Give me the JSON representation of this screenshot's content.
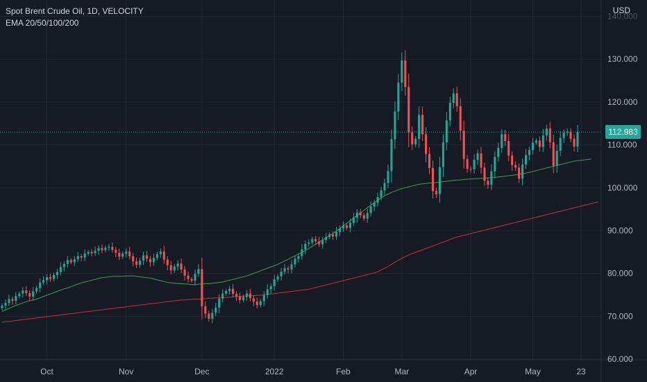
{
  "chart_data": {
    "type": "candlestick",
    "title": "Spot Brent Crude Oil, 1D, VELOCITY",
    "subtitle": "EMA 20/50/100/200",
    "currency": "USD",
    "last_price": "112.983",
    "last_value": 112.983,
    "ylim": [
      60,
      140
    ],
    "y_ticks": [
      "60.000",
      "70.000",
      "80.000",
      "90.000",
      "100.000",
      "110.000",
      "120.000",
      "130.000",
      "140.000"
    ],
    "y_tick_values": [
      60,
      70,
      80,
      90,
      100,
      110,
      120,
      130,
      140
    ],
    "x_ticks": [
      {
        "label": "Oct",
        "index": 13
      },
      {
        "label": "Nov",
        "index": 36
      },
      {
        "label": "Dec",
        "index": 58
      },
      {
        "label": "2022",
        "index": 79
      },
      {
        "label": "Feb",
        "index": 99
      },
      {
        "label": "Mar",
        "index": 116
      },
      {
        "label": "Apr",
        "index": 136
      },
      {
        "label": "May",
        "index": 154
      },
      {
        "label": "23",
        "index": 168
      }
    ],
    "closes": [
      72.5,
      73.1,
      74.0,
      73.6,
      74.7,
      75.3,
      76.0,
      75.4,
      74.6,
      75.8,
      76.6,
      77.9,
      78.4,
      79.1,
      78.7,
      79.6,
      80.3,
      81.5,
      82.2,
      83.1,
      82.6,
      83.3,
      84.0,
      83.7,
      84.6,
      85.0,
      84.7,
      85.3,
      85.9,
      85.4,
      86.0,
      86.2,
      85.5,
      84.8,
      83.9,
      84.6,
      85.1,
      84.0,
      82.8,
      82.0,
      83.0,
      84.2,
      83.4,
      82.6,
      83.6,
      84.5,
      85.1,
      83.2,
      81.9,
      80.7,
      81.6,
      82.3,
      80.9,
      79.5,
      78.7,
      78.3,
      79.9,
      81.0,
      72.3,
      70.6,
      69.4,
      70.8,
      72.0,
      74.1,
      75.3,
      75.9,
      76.4,
      75.2,
      74.6,
      73.8,
      74.5,
      75.3,
      74.2,
      73.4,
      72.6,
      73.5,
      74.9,
      76.3,
      77.0,
      78.6,
      79.3,
      80.4,
      81.2,
      80.9,
      82.1,
      83.4,
      84.0,
      85.6,
      86.9,
      87.2,
      88.0,
      87.5,
      86.8,
      87.8,
      88.5,
      89.1,
      88.6,
      89.7,
      90.5,
      91.2,
      90.6,
      91.8,
      93.0,
      94.2,
      93.6,
      92.8,
      94.1,
      95.6,
      96.5,
      97.8,
      99.4,
      101.1,
      103.9,
      111.3,
      117.8,
      124.5,
      129.7,
      123.5,
      112.9,
      110.1,
      111.4,
      117.0,
      112.5,
      107.9,
      104.6,
      99.2,
      98.5,
      104.8,
      110.6,
      115.7,
      119.8,
      122.0,
      119.0,
      113.3,
      106.7,
      104.4,
      104.3,
      106.5,
      108.0,
      104.7,
      101.6,
      100.7,
      103.8,
      107.2,
      109.3,
      112.5,
      110.9,
      107.5,
      105.3,
      104.7,
      102.1,
      105.4,
      107.6,
      108.8,
      110.5,
      111.0,
      109.5,
      112.2,
      113.8,
      110.6,
      105.1,
      108.6,
      111.6,
      112.8,
      113.1,
      111.4,
      109.6,
      112.983
    ],
    "ema_100": [
      71.1,
      71.5,
      71.8,
      72.2,
      72.5,
      72.8,
      73.1,
      73.4,
      73.6,
      73.8,
      74.0,
      74.3,
      74.6,
      74.9,
      75.2,
      75.5,
      75.8,
      76.1,
      76.4,
      76.6,
      76.9,
      77.2,
      77.5,
      77.8,
      78.0,
      78.2,
      78.4,
      78.6,
      78.8,
      79.0,
      79.1,
      79.2,
      79.3,
      79.3,
      79.3,
      79.3,
      79.4,
      79.4,
      79.4,
      79.3,
      79.2,
      79.1,
      79.0,
      78.9,
      78.7,
      78.5,
      78.3,
      78.1,
      77.9,
      77.8,
      77.7,
      77.6,
      77.6,
      77.5,
      77.5,
      77.4,
      77.4,
      77.5,
      77.5,
      77.6,
      77.6,
      77.7,
      77.8,
      77.9,
      78.0,
      78.2,
      78.4,
      78.6,
      78.8,
      79.0,
      79.2,
      79.4,
      79.7,
      80.0,
      80.3,
      80.6,
      80.9,
      81.2,
      81.5,
      81.8,
      82.1,
      82.5,
      82.9,
      83.3,
      83.7,
      84.1,
      84.5,
      84.9,
      85.3,
      85.8,
      86.3,
      86.8,
      87.3,
      87.8,
      88.3,
      88.8,
      89.3,
      89.9,
      90.5,
      91.1,
      91.7,
      92.3,
      92.9,
      93.5,
      94.1,
      94.7,
      95.3,
      95.9,
      96.5,
      97.1,
      97.6,
      98.1,
      98.5,
      98.9,
      99.2,
      99.5,
      99.8,
      100.0,
      100.2,
      100.4,
      100.6,
      100.8,
      100.9,
      101.0,
      101.1,
      101.1,
      101.2,
      101.3,
      101.4,
      101.5,
      101.6,
      101.7,
      101.8,
      101.8,
      101.9,
      102.0,
      102.0,
      102.1,
      102.1,
      102.2,
      102.2,
      102.3,
      102.4,
      102.4,
      102.5,
      102.6,
      102.7,
      102.8,
      102.9,
      103.0,
      103.1,
      103.3,
      103.4,
      103.6,
      103.8,
      104.0,
      104.2,
      104.4,
      104.6,
      104.8,
      105.0,
      105.2,
      105.4,
      105.6,
      105.8,
      106.0,
      106.2,
      106.3,
      106.4,
      106.5,
      106.6,
      106.7
    ],
    "ema_200": [
      68.6,
      68.7,
      68.8,
      68.9,
      69.0,
      69.1,
      69.2,
      69.3,
      69.4,
      69.5,
      69.6,
      69.7,
      69.8,
      69.9,
      70.0,
      70.1,
      70.2,
      70.3,
      70.4,
      70.5,
      70.6,
      70.7,
      70.8,
      70.9,
      71.0,
      71.1,
      71.2,
      71.3,
      71.4,
      71.5,
      71.6,
      71.7,
      71.8,
      71.9,
      72.0,
      72.1,
      72.2,
      72.3,
      72.4,
      72.5,
      72.6,
      72.7,
      72.8,
      72.9,
      73.0,
      73.1,
      73.2,
      73.3,
      73.4,
      73.5,
      73.6,
      73.7,
      73.8,
      73.8,
      73.9,
      73.9,
      74.0,
      74.0,
      74.1,
      74.1,
      74.2,
      74.2,
      74.3,
      74.3,
      74.4,
      74.4,
      74.5,
      74.5,
      74.6,
      74.6,
      74.7,
      74.7,
      74.8,
      74.8,
      74.9,
      74.9,
      75.0,
      75.1,
      75.2,
      75.3,
      75.4,
      75.5,
      75.6,
      75.7,
      75.8,
      75.9,
      76.0,
      76.1,
      76.2,
      76.3,
      76.5,
      76.7,
      76.9,
      77.1,
      77.3,
      77.5,
      77.7,
      77.9,
      78.1,
      78.3,
      78.5,
      78.7,
      78.9,
      79.1,
      79.3,
      79.5,
      79.7,
      79.9,
      80.1,
      80.4,
      80.8,
      81.2,
      81.6,
      82.1,
      82.6,
      83.1,
      83.5,
      83.9,
      84.3,
      84.6,
      84.9,
      85.2,
      85.5,
      85.8,
      86.1,
      86.4,
      86.7,
      87.0,
      87.3,
      87.6,
      87.9,
      88.2,
      88.5,
      88.7,
      88.9,
      89.1,
      89.3,
      89.5,
      89.7,
      89.9,
      90.1,
      90.3,
      90.5,
      90.7,
      90.9,
      91.1,
      91.3,
      91.5,
      91.7,
      91.9,
      92.1,
      92.3,
      92.5,
      92.7,
      92.9,
      93.1,
      93.3,
      93.5,
      93.7,
      93.9,
      94.1,
      94.3,
      94.5,
      94.7,
      94.9,
      95.1,
      95.3,
      95.5,
      95.7,
      95.9,
      96.1,
      96.3,
      96.5,
      96.7
    ]
  },
  "colors": {
    "background": "#161a25",
    "grid": "#232733",
    "up": "#26a69a",
    "down": "#ef5350",
    "ema_100": "#43a047",
    "ema_200": "#d32f2f",
    "text": "#b2b5be",
    "price_line": "#26a69a"
  }
}
